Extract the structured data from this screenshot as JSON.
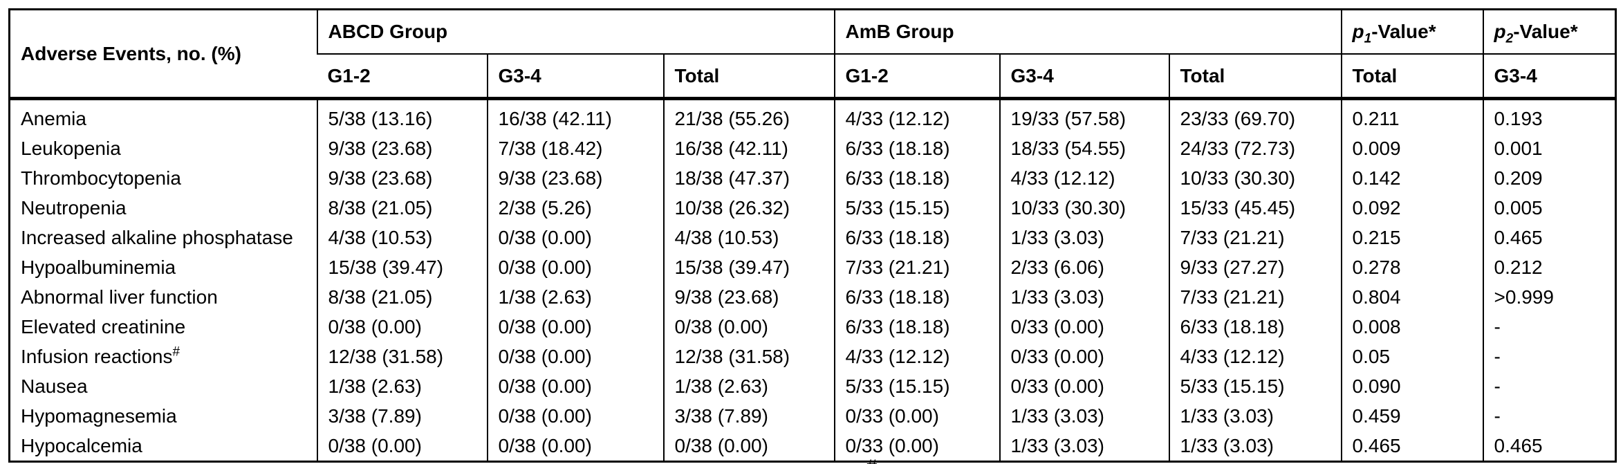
{
  "table": {
    "row_header": "Adverse Events, no. (%)",
    "group_headers": {
      "abcd": "ABCD Group",
      "amb": "AmB Group",
      "p1": {
        "letter": "p",
        "sub": "1",
        "rest": "-Value*"
      },
      "p2": {
        "letter": "p",
        "sub": "2",
        "rest": "-Value*"
      }
    },
    "sub_headers": {
      "abcd": [
        "G1-2",
        "G3-4",
        "Total"
      ],
      "amb": [
        "G1-2",
        "G3-4",
        "Total"
      ],
      "p1": "Total",
      "p2": "G3-4"
    },
    "rows": [
      {
        "label": "Anemia",
        "label_sup": "",
        "cells": [
          "5/38 (13.16)",
          "16/38 (42.11)",
          "21/38 (55.26)",
          "4/33 (12.12)",
          "19/33 (57.58)",
          "23/33 (69.70)",
          "0.211",
          "0.193"
        ]
      },
      {
        "label": "Leukopenia",
        "label_sup": "",
        "cells": [
          "9/38 (23.68)",
          "7/38 (18.42)",
          "16/38 (42.11)",
          "6/33 (18.18)",
          "18/33 (54.55)",
          "24/33 (72.73)",
          "0.009",
          "0.001"
        ]
      },
      {
        "label": "Thrombocytopenia",
        "label_sup": "",
        "cells": [
          "9/38 (23.68)",
          "9/38 (23.68)",
          "18/38 (47.37)",
          "6/33 (18.18)",
          "4/33 (12.12)",
          "10/33 (30.30)",
          "0.142",
          "0.209"
        ]
      },
      {
        "label": "Neutropenia",
        "label_sup": "",
        "cells": [
          "8/38 (21.05)",
          "2/38 (5.26)",
          "10/38 (26.32)",
          "5/33 (15.15)",
          "10/33 (30.30)",
          "15/33 (45.45)",
          "0.092",
          "0.005"
        ]
      },
      {
        "label": "Increased alkaline phosphatase",
        "label_sup": "",
        "cells": [
          "4/38 (10.53)",
          "0/38 (0.00)",
          "4/38 (10.53)",
          "6/33 (18.18)",
          "1/33 (3.03)",
          "7/33 (21.21)",
          "0.215",
          "0.465"
        ]
      },
      {
        "label": "Hypoalbuminemia",
        "label_sup": "",
        "cells": [
          "15/38 (39.47)",
          "0/38 (0.00)",
          "15/38 (39.47)",
          "7/33 (21.21)",
          "2/33 (6.06)",
          "9/33 (27.27)",
          "0.278",
          "0.212"
        ]
      },
      {
        "label": "Abnormal liver function",
        "label_sup": "",
        "cells": [
          "8/38 (21.05)",
          "1/38 (2.63)",
          "9/38 (23.68)",
          "6/33 (18.18)",
          "1/33 (3.03)",
          "7/33 (21.21)",
          "0.804",
          ">0.999"
        ]
      },
      {
        "label": "Elevated creatinine",
        "label_sup": "",
        "cells": [
          "0/38 (0.00)",
          "0/38 (0.00)",
          "0/38 (0.00)",
          "6/33 (18.18)",
          "0/33 (0.00)",
          "6/33 (18.18)",
          "0.008",
          "-"
        ]
      },
      {
        "label": "Infusion reactions",
        "label_sup": "#",
        "cells": [
          "12/38 (31.58)",
          "0/38 (0.00)",
          "12/38 (31.58)",
          "4/33 (12.12)",
          "0/33 (0.00)",
          "4/33 (12.12)",
          "0.05",
          "-"
        ]
      },
      {
        "label": "Nausea",
        "label_sup": "",
        "cells": [
          "1/38 (2.63)",
          "0/38 (0.00)",
          "1/38 (2.63)",
          "5/33 (15.15)",
          "0/33 (0.00)",
          "5/33 (15.15)",
          "0.090",
          "-"
        ]
      },
      {
        "label": "Hypomagnesemia",
        "label_sup": "",
        "cells": [
          "3/38 (7.89)",
          "0/38 (0.00)",
          "3/38 (7.89)",
          "0/33 (0.00)",
          "1/33 (3.03)",
          "1/33 (3.03)",
          "0.459",
          "-"
        ]
      },
      {
        "label": "Hypocalcemia",
        "label_sup": "",
        "cells": [
          "0/38 (0.00)",
          "0/38 (0.00)",
          "0/38 (0.00)",
          "0/33 (0.00)",
          "1/33 (3.03)",
          "1/33 (3.03)",
          "0.465",
          "0.465"
        ]
      }
    ]
  },
  "footnote": {
    "cut_mark": "#"
  }
}
